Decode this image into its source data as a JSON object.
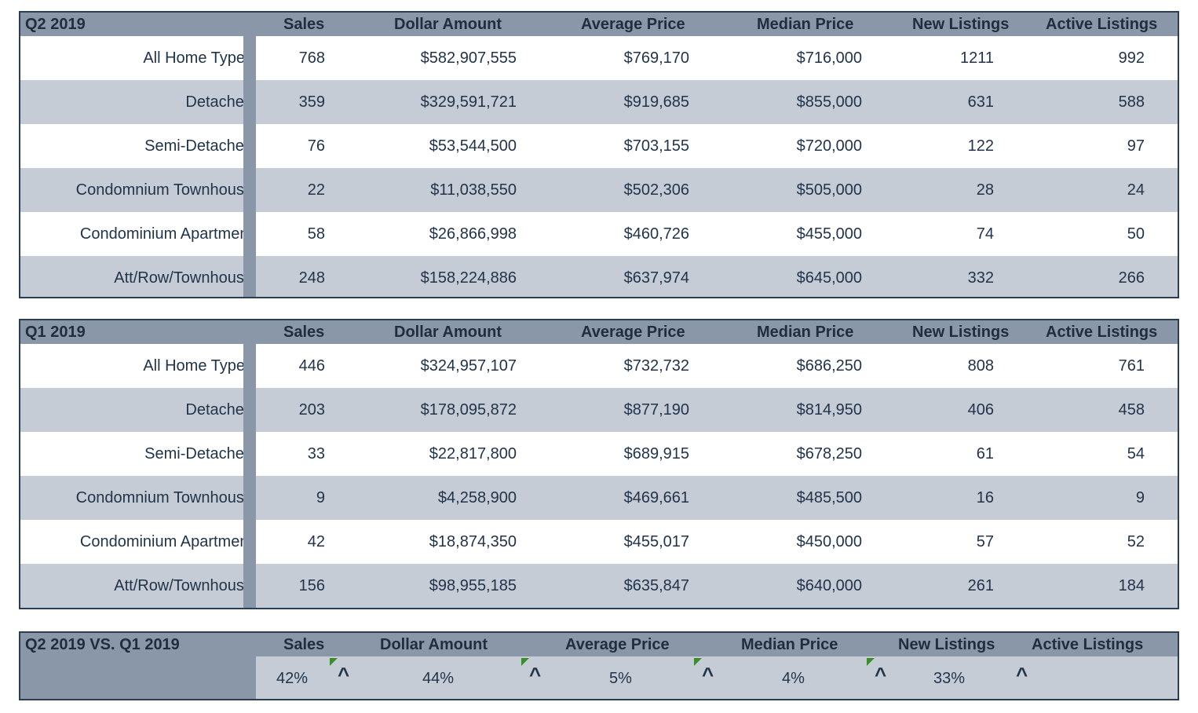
{
  "columns": {
    "sales": "Sales",
    "dollar": "Dollar Amount",
    "avg": "Average Price",
    "median": "Median Price",
    "new": "New Listings",
    "active": "Active Listings"
  },
  "q2": {
    "title": "Q2 2019",
    "rows": [
      {
        "type": "All Home Types",
        "sales": "768",
        "dollar": "$582,907,555",
        "avg": "$769,170",
        "median": "$716,000",
        "new": "1211",
        "active": "992"
      },
      {
        "type": "Detached",
        "sales": "359",
        "dollar": "$329,591,721",
        "avg": "$919,685",
        "median": "$855,000",
        "new": "631",
        "active": "588"
      },
      {
        "type": "Semi-Detached",
        "sales": "76",
        "dollar": "$53,544,500",
        "avg": "$703,155",
        "median": "$720,000",
        "new": "122",
        "active": "97"
      },
      {
        "type": "Condomnium Townhouse",
        "sales": "22",
        "dollar": "$11,038,550",
        "avg": "$502,306",
        "median": "$505,000",
        "new": "28",
        "active": "24"
      },
      {
        "type": "Condominium Apartment",
        "sales": "58",
        "dollar": "$26,866,998",
        "avg": "$460,726",
        "median": "$455,000",
        "new": "74",
        "active": "50"
      },
      {
        "type": "Att/Row/Townhouse",
        "sales": "248",
        "dollar": "$158,224,886",
        "avg": "$637,974",
        "median": "$645,000",
        "new": "332",
        "active": "266"
      }
    ]
  },
  "q1": {
    "title": "Q1 2019",
    "rows": [
      {
        "type": "All Home Types",
        "sales": "446",
        "dollar": "$324,957,107",
        "avg": "$732,732",
        "median": "$686,250",
        "new": "808",
        "active": "761"
      },
      {
        "type": "Detached",
        "sales": "203",
        "dollar": "$178,095,872",
        "avg": "$877,190",
        "median": "$814,950",
        "new": "406",
        "active": "458"
      },
      {
        "type": "Semi-Detached",
        "sales": "33",
        "dollar": "$22,817,800",
        "avg": "$689,915",
        "median": "$678,250",
        "new": "61",
        "active": "54"
      },
      {
        "type": "Condomnium Townhouse",
        "sales": "9",
        "dollar": "$4,258,900",
        "avg": "$469,661",
        "median": "$485,500",
        "new": "16",
        "active": "9"
      },
      {
        "type": "Condominium Apartment",
        "sales": "42",
        "dollar": "$18,874,350",
        "avg": "$455,017",
        "median": "$450,000",
        "new": "57",
        "active": "52"
      },
      {
        "type": "Att/Row/Townhouse",
        "sales": "156",
        "dollar": "$98,955,185",
        "avg": "$635,847",
        "median": "$640,000",
        "new": "261",
        "active": "184"
      }
    ]
  },
  "comparison": {
    "title": "Q2 2019 VS. Q1 2019",
    "sales": "42%",
    "dollar": "44%",
    "avg": "5%",
    "median": "4%",
    "new": "33%",
    "caret": "^",
    "colors": {
      "indicator": "#3c8a2e"
    }
  },
  "colors": {
    "header": "#8997a9",
    "band": "#c5ccd6",
    "border": "#2b3d51",
    "text": "#22344a"
  }
}
